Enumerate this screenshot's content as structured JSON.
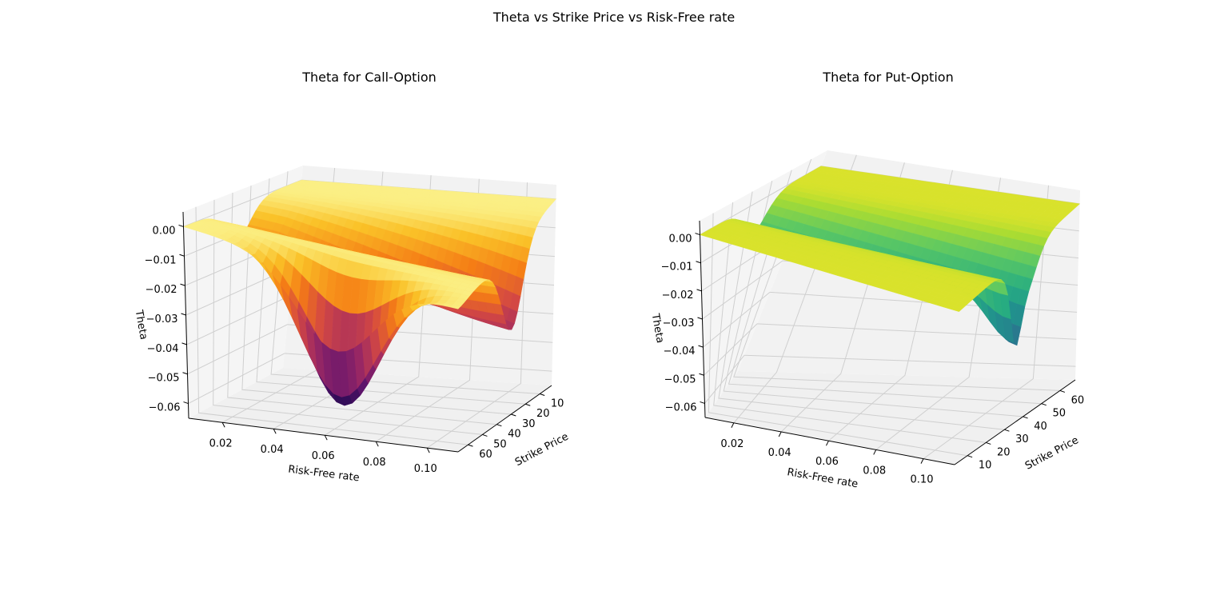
{
  "figure": {
    "suptitle": "Theta vs Strike Price vs Risk-Free rate"
  },
  "chart_data": [
    {
      "type": "surface3d",
      "title": "Theta for Call-Option",
      "xlabel": "Risk-Free rate",
      "ylabel": "Strike Price",
      "zlabel": "Theta",
      "colormap": "inferno",
      "x_ticks": [
        "0.10",
        "0.08",
        "0.06",
        "0.04",
        "0.02"
      ],
      "y_ticks": [
        "10",
        "20",
        "30",
        "40",
        "50",
        "60"
      ],
      "z_ticks": [
        "0.00",
        "−0.01",
        "−0.02",
        "−0.03",
        "−0.04",
        "−0.05",
        "−0.06"
      ],
      "xlim": [
        0.01,
        0.1
      ],
      "ylim": [
        5,
        65
      ],
      "zlim": [
        -0.065,
        0.005
      ],
      "grid": true,
      "approx_surface": {
        "plateau_theta": 0.0,
        "valley_along": "Strike Price",
        "valley_center_strike": 35,
        "min_theta": -0.063,
        "min_at": {
          "risk_free_rate": 0.06,
          "strike_price": 10
        }
      }
    },
    {
      "type": "surface3d",
      "title": "Theta for Put-Option",
      "xlabel": "Risk-Free rate",
      "ylabel": "Strike Price",
      "zlabel": "Theta",
      "colormap": "viridis",
      "x_ticks": [
        "0.02",
        "0.04",
        "0.06",
        "0.08",
        "0.10"
      ],
      "y_ticks": [
        "10",
        "20",
        "30",
        "40",
        "50",
        "60"
      ],
      "z_ticks": [
        "0.00",
        "−0.01",
        "−0.02",
        "−0.03",
        "−0.04",
        "−0.05",
        "−0.06"
      ],
      "xlim": [
        0.01,
        0.1
      ],
      "ylim": [
        5,
        65
      ],
      "zlim": [
        -0.065,
        0.005
      ],
      "grid": true,
      "approx_surface": {
        "plateau_theta": 0.0,
        "valley_along": "Strike Price",
        "valley_center_strike": 35,
        "min_theta": -0.045,
        "min_at": {
          "risk_free_rate": 0.1,
          "strike_price": 35
        }
      }
    }
  ]
}
